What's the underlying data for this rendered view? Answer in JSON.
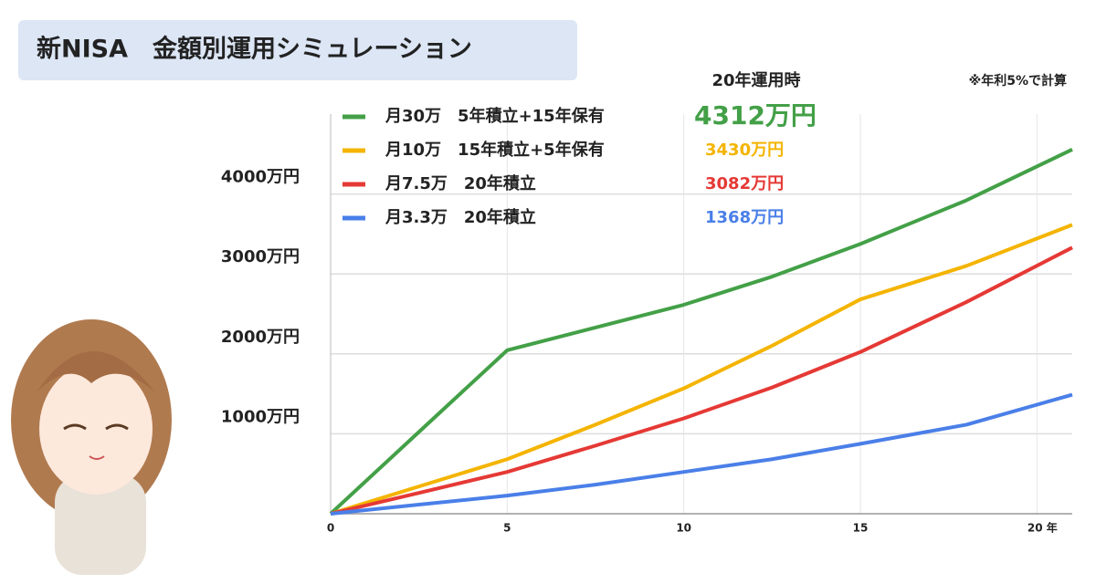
{
  "title": "新NISA　金額別運用シミュレーション",
  "chart_data": {
    "type": "line",
    "result_header": "20年運用時",
    "note": "※年利5%で計算",
    "x": [
      0,
      2.5,
      5,
      7.5,
      10,
      12.5,
      15,
      18,
      21
    ],
    "series": [
      {
        "name": "月30万　5年積立+15年保有",
        "color": "#43a047",
        "result": "4312万円",
        "values": [
          0,
          1023,
          2045,
          2330,
          2614,
          2966,
          3375,
          3920,
          4557
        ]
      },
      {
        "name": "月10万　15年積立+5年保有",
        "color": "#f4b400",
        "result": "3430万円",
        "values": [
          0,
          341,
          682,
          1114,
          1568,
          2102,
          2682,
          3100,
          3614
        ]
      },
      {
        "name": "月7.5万　20年積立",
        "color": "#e53935",
        "result": "3082万円",
        "values": [
          0,
          261,
          523,
          852,
          1193,
          1580,
          2023,
          2648,
          3330
        ]
      },
      {
        "name": "月3.3万　20年積立",
        "color": "#4a7fe8",
        "result": "1368万円",
        "values": [
          0,
          114,
          227,
          364,
          523,
          682,
          875,
          1114,
          1489
        ]
      }
    ],
    "xlim": [
      0,
      21
    ],
    "xticks": [
      0,
      5,
      10,
      15,
      {
        "value": 20,
        "label": "20 年"
      }
    ],
    "ylim": [
      0,
      5000
    ],
    "yticks": [
      {
        "value": 1000,
        "label": "1000万円"
      },
      {
        "value": 2000,
        "label": "2000万円"
      },
      {
        "value": 3000,
        "label": "3000万円"
      },
      {
        "value": 4000,
        "label": "4000万円"
      }
    ],
    "grid": true
  }
}
